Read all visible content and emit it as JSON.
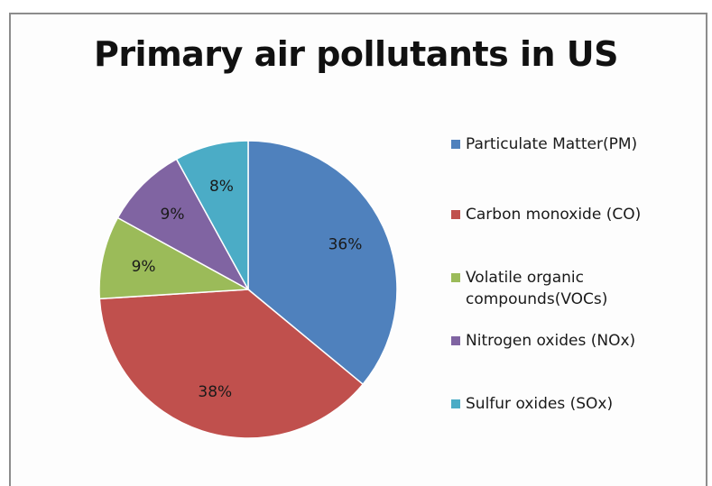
{
  "chart_data": {
    "type": "pie",
    "title": "Primary air pollutants in US",
    "categories": [
      "Particulate Matter(PM)",
      "Carbon monoxide (CO)",
      "Volatile organic\ncompounds(VOCs)",
      "Nitrogen oxides (NOx)",
      "Sulfur oxides (SOx)"
    ],
    "values": [
      36,
      38,
      9,
      9,
      8
    ],
    "labels": [
      "36%",
      "38%",
      "9%",
      "9%",
      "8%"
    ],
    "colors": [
      "#4f81bd",
      "#c0504d",
      "#9bbb59",
      "#8064a2",
      "#4bacc6"
    ],
    "legend_position": "right"
  }
}
